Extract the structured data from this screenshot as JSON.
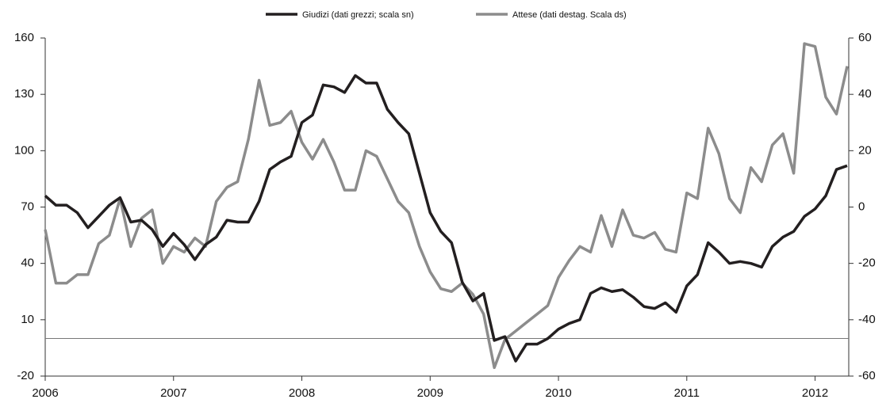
{
  "chart_data": {
    "type": "line",
    "categories": [
      "2006",
      null,
      null,
      null,
      null,
      null,
      null,
      null,
      null,
      null,
      null,
      null,
      "2007",
      null,
      null,
      null,
      null,
      null,
      null,
      null,
      null,
      null,
      null,
      null,
      "2008",
      null,
      null,
      null,
      null,
      null,
      null,
      null,
      null,
      null,
      null,
      null,
      "2009",
      null,
      null,
      null,
      null,
      null,
      null,
      null,
      null,
      null,
      null,
      null,
      "2010",
      null,
      null,
      null,
      null,
      null,
      null,
      null,
      null,
      null,
      null,
      null,
      "2011",
      null,
      null,
      null,
      null,
      null,
      null,
      null,
      null,
      null,
      null,
      null,
      "2012",
      null,
      null,
      null
    ],
    "series": [
      {
        "name": "Giudizi (dati grezzi; scala sn)",
        "color": "#231f20",
        "values": [
          76,
          71,
          71,
          67,
          59,
          65,
          71,
          75,
          62,
          63,
          58,
          49,
          56,
          50,
          42,
          50,
          54,
          63,
          62,
          62,
          73,
          90,
          94,
          97,
          115,
          119,
          135,
          134,
          131,
          140,
          136,
          136,
          122,
          115,
          109,
          88,
          67,
          57,
          51,
          30,
          20,
          24,
          -1,
          1,
          -12,
          -3,
          -3,
          0,
          5,
          8,
          10,
          24,
          27,
          25,
          26,
          22,
          17,
          16,
          19,
          14,
          28,
          34,
          51,
          46,
          40,
          41,
          40,
          38,
          49,
          54,
          57,
          65,
          69,
          76,
          90,
          92
        ]
      },
      {
        "name": "Attese (dati destag. Scala ds)",
        "color": "#8c8c8c",
        "axis": "y2",
        "values": [
          -8,
          -27,
          -27,
          -24,
          -24,
          -13,
          -10,
          3,
          -14,
          -4,
          -1,
          -20,
          -14,
          -16,
          -11,
          -14,
          2,
          7,
          9,
          24,
          45,
          29,
          30,
          34,
          23,
          17,
          24,
          16,
          6,
          6,
          20,
          18,
          10,
          2,
          -2,
          -14,
          -23,
          -29,
          -30,
          -27,
          -31,
          -38,
          -57,
          -47,
          -44,
          -41,
          -38,
          -35,
          -25,
          -19,
          -14,
          -16,
          -3,
          -14,
          -1,
          -10,
          -11,
          -9,
          -15,
          -16,
          5,
          3,
          28,
          19,
          3,
          -2,
          14,
          9,
          22,
          26,
          12,
          58,
          57,
          39,
          33,
          50
        ]
      }
    ],
    "ylim": [
      -20,
      160
    ],
    "yticks": [
      -20,
      10,
      40,
      70,
      100,
      130,
      160
    ],
    "y2lim": [
      -60,
      60
    ],
    "y2ticks": [
      -60,
      -40,
      -20,
      0,
      20,
      40,
      60
    ],
    "reference_line": 0,
    "grid": false
  }
}
